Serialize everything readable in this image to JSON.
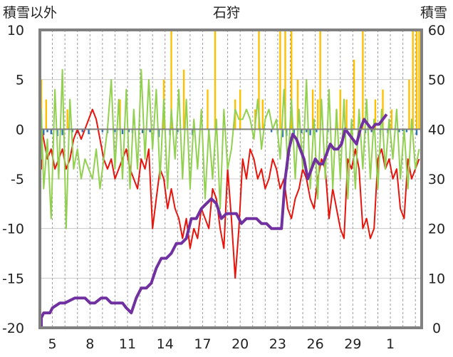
{
  "chart_data": {
    "type": "line",
    "title": "石狩",
    "y_left_label": "積雪以外",
    "y_right_label": "積雪",
    "y_left_ticks": [
      "10",
      "5",
      "0",
      "-5",
      "-10",
      "-15",
      "-20"
    ],
    "y_right_ticks": [
      "60",
      "50",
      "40",
      "30",
      "20",
      "10",
      "0"
    ],
    "x_ticks": [
      "5",
      "8",
      "11",
      "14",
      "17",
      "20",
      "23",
      "26",
      "29",
      "1"
    ],
    "ylim_left": [
      -20,
      10
    ],
    "ylim_right": [
      0,
      60
    ],
    "x_range_days": [
      0,
      30.5
    ],
    "x_tick_days": [
      1,
      4,
      7,
      10,
      13,
      16,
      19,
      22,
      25,
      28
    ],
    "grid": {
      "vertical_dashed": true,
      "horizontal_solid": true
    },
    "colors": {
      "temperature": "#e8140b",
      "wind": "#92d050",
      "precipitation": "#ffc000",
      "snowfall_negative": "#2e75b6",
      "snow_depth": "#7030a0",
      "axis_zero": "#808080",
      "frame": "#808080"
    },
    "series": [
      {
        "key": "snow_depth",
        "axis": "right",
        "x": [
          -0.6,
          -0.3,
          0.1,
          0.3,
          0.8,
          1.0,
          1.6,
          2.0,
          2.8,
          3.2,
          3.6,
          4.0,
          4.4,
          4.9,
          5.3,
          5.7,
          6.2,
          6.6,
          6.9,
          7.3,
          7.7,
          8.1,
          8.5,
          8.9,
          9.3,
          9.7,
          10.1,
          10.5,
          10.9,
          11.3,
          11.7,
          12.1,
          12.5,
          12.9,
          13.3,
          13.7,
          14.1,
          14.5,
          14.9,
          15.3,
          15.7,
          16.1,
          16.5,
          16.9,
          17.3,
          17.7,
          18.1,
          18.5,
          18.9,
          19.1,
          19.3,
          19.6,
          19.9,
          20.2,
          20.5,
          20.8,
          21.1,
          21.4,
          21.7,
          22.0,
          22.3,
          22.6,
          22.9,
          23.2,
          23.5,
          23.8,
          24.1,
          24.4,
          24.7,
          25.0,
          25.3,
          25.6,
          25.9,
          26.2,
          26.5,
          26.8,
          27.1,
          27.4,
          27.7
        ],
        "y": [
          0,
          1,
          2,
          3,
          3,
          4,
          5,
          5,
          6,
          6,
          6,
          5,
          5,
          6,
          6,
          5,
          5,
          5,
          4,
          3,
          6,
          8,
          8,
          9,
          12,
          14,
          14,
          15,
          17,
          17,
          18,
          22,
          22,
          24,
          25,
          26,
          25,
          22,
          23,
          23,
          23,
          21,
          22,
          22,
          22,
          21,
          21,
          20,
          20,
          20,
          20,
          30,
          36,
          39,
          38,
          36,
          34,
          30,
          32,
          34,
          33,
          33,
          35,
          37,
          36,
          36,
          37,
          40,
          39,
          38,
          37,
          40,
          42,
          41,
          40,
          41,
          41,
          42,
          43
        ]
      },
      {
        "key": "temperature",
        "axis": "left",
        "x": [
          -0.6,
          -0.3,
          0.0,
          0.3,
          0.6,
          0.9,
          1.2,
          1.5,
          1.8,
          2.1,
          2.4,
          2.7,
          3.0,
          3.3,
          3.6,
          3.9,
          4.2,
          4.5,
          4.8,
          5.1,
          5.4,
          5.7,
          6.0,
          6.3,
          6.6,
          6.9,
          7.2,
          7.5,
          7.8,
          8.1,
          8.4,
          8.7,
          9.0,
          9.3,
          9.6,
          9.9,
          10.2,
          10.5,
          10.8,
          11.1,
          11.4,
          11.7,
          12.0,
          12.3,
          12.6,
          12.9,
          13.2,
          13.5,
          13.8,
          14.1,
          14.4,
          14.7,
          15.0,
          15.3,
          15.6,
          15.9,
          16.2,
          16.5,
          16.8,
          17.1,
          17.4,
          17.7,
          18.0,
          18.3,
          18.6,
          18.9,
          19.2,
          19.5,
          19.8,
          20.1,
          20.4,
          20.7,
          21.0,
          21.3,
          21.6,
          21.9,
          22.2,
          22.5,
          22.8,
          23.1,
          23.4,
          23.7,
          24.0,
          24.3,
          24.6,
          24.9,
          25.2,
          25.5,
          25.8,
          26.1,
          26.4,
          26.7,
          27.0,
          27.3,
          27.6,
          27.9,
          28.2,
          28.5,
          28.8,
          29.1,
          29.4,
          29.7,
          30.0,
          30.3
        ],
        "y": [
          -3,
          -4,
          0,
          -1,
          -3,
          -2,
          -4,
          -3,
          -2,
          -4,
          -3,
          -1,
          0,
          -1,
          0,
          1,
          2,
          1,
          -1,
          -3,
          -4,
          -3,
          -5,
          -4,
          -3,
          -2,
          -4,
          -5,
          -6,
          -3,
          -4,
          -2,
          -10,
          -7,
          -4,
          -5,
          -8,
          -6,
          -8,
          -9,
          -11,
          -9,
          -12,
          -10,
          -11,
          -8,
          -9,
          -10,
          -6,
          -7,
          -10,
          -12,
          -4,
          -9,
          -15,
          -10,
          -3,
          -5,
          -2,
          -3,
          -5,
          -4,
          -6,
          -5,
          -3,
          -4,
          -6,
          -5,
          -8,
          -9,
          -7,
          -6,
          -4,
          -5,
          -7,
          -8,
          -5,
          -3,
          -4,
          -9,
          -6,
          -8,
          -10,
          -11,
          -3,
          -4,
          -2,
          -4,
          -10,
          -9,
          -11,
          -10,
          -3,
          -2,
          -4,
          -3,
          -5,
          -4,
          -8,
          -9,
          -3,
          -5,
          -4,
          -3
        ]
      },
      {
        "key": "wind",
        "axis": "left",
        "x": [
          -0.6,
          -0.3,
          0.0,
          0.3,
          0.6,
          0.9,
          1.2,
          1.5,
          1.8,
          2.1,
          2.4,
          2.7,
          3.0,
          3.3,
          3.6,
          3.9,
          4.2,
          4.5,
          4.8,
          5.1,
          5.4,
          5.7,
          6.0,
          6.3,
          6.6,
          6.9,
          7.2,
          7.5,
          7.8,
          8.1,
          8.4,
          8.7,
          9.0,
          9.3,
          9.6,
          9.9,
          10.2,
          10.5,
          10.8,
          11.1,
          11.4,
          11.7,
          12.0,
          12.3,
          12.6,
          12.9,
          13.2,
          13.5,
          13.8,
          14.1,
          14.4,
          14.7,
          15.0,
          15.3,
          15.6,
          15.9,
          16.2,
          16.5,
          16.8,
          17.1,
          17.4,
          17.7,
          18.0,
          18.3,
          18.6,
          18.9,
          19.2,
          19.5,
          19.8,
          20.1,
          20.4,
          20.7,
          21.0,
          21.3,
          21.6,
          21.9,
          22.2,
          22.5,
          22.8,
          23.1,
          23.4,
          23.7,
          24.0,
          24.3,
          24.6,
          24.9,
          25.2,
          25.5,
          25.8,
          26.1,
          26.4,
          26.7,
          27.0,
          27.3,
          27.6,
          27.9,
          28.2,
          28.5,
          28.8,
          29.1,
          29.4,
          29.7,
          30.0,
          30.3
        ],
        "y": [
          1,
          -3,
          2,
          -6,
          -1,
          -9,
          4,
          -5,
          6,
          -10,
          3,
          -4,
          -2,
          -5,
          -3,
          -4,
          -5,
          -2,
          -6,
          -3,
          0,
          5,
          -4,
          3,
          -5,
          4,
          -6,
          2,
          -4,
          6,
          -3,
          5,
          -2,
          4,
          -5,
          3,
          -6,
          2,
          -3,
          4,
          -5,
          3,
          -6,
          1,
          -4,
          2,
          -7,
          0,
          -5,
          1,
          -8,
          2,
          -4,
          -2,
          2,
          1,
          1,
          2,
          1,
          -1,
          3,
          -2,
          1,
          2,
          0,
          1,
          -3,
          4,
          -4,
          3,
          -5,
          2,
          -4,
          5,
          -6,
          1,
          -7,
          3,
          -5,
          4,
          -6,
          2,
          -5,
          3,
          -7,
          1,
          -6,
          2,
          -4,
          3,
          -5,
          1,
          -6,
          2,
          -4,
          1,
          -3,
          2,
          -5,
          0,
          -6,
          1,
          -4,
          -2
        ]
      },
      {
        "key": "precipitation",
        "axis": "left",
        "type": "bar",
        "x": [
          -0.5,
          0.5,
          2.2,
          6.4,
          9.9,
          10.5,
          11.5,
          13.4,
          14.0,
          15.6,
          16.0,
          17.2,
          17.5,
          17.8,
          19.2,
          19.6,
          20.1,
          20.6,
          21.8,
          22.2,
          22.4,
          23.7,
          24.0,
          24.5,
          25.1,
          25.8,
          26.8,
          27.4,
          28.1,
          29.5,
          29.8,
          30.1,
          30.3
        ],
        "y": [
          5,
          3,
          2,
          3,
          5,
          10,
          6,
          4,
          10,
          3,
          4,
          2,
          10,
          3,
          10,
          10,
          10,
          5,
          4,
          3,
          10,
          2,
          4,
          3,
          7,
          10,
          3,
          4,
          2,
          5,
          10,
          10,
          10
        ]
      },
      {
        "key": "snowfall_negative",
        "axis": "left",
        "type": "bar",
        "x": [
          -0.2,
          0.3,
          0.6,
          0.9,
          1.4,
          1.8,
          2.6,
          3.0,
          3.4,
          3.9,
          5.0,
          5.4,
          6.0,
          6.6,
          7.1,
          7.4,
          8.2,
          8.8,
          9.5,
          10.4,
          11.0,
          12.2,
          13.5,
          18.5,
          19.0,
          19.4,
          19.7,
          20.3,
          20.9,
          21.3,
          21.6,
          22.1,
          23.0,
          24.2,
          26.0,
          26.5,
          27.2,
          27.8,
          28.7,
          29.0,
          29.3,
          29.7,
          30.1
        ],
        "y": [
          -0.3,
          -0.6,
          -0.3,
          -0.5,
          -0.7,
          -0.6,
          -0.3,
          -0.4,
          -0.3,
          -0.5,
          -0.3,
          -0.4,
          -0.3,
          -0.5,
          -0.3,
          -0.4,
          -0.4,
          -0.3,
          -0.8,
          -0.6,
          -0.3,
          -0.6,
          -0.3,
          -0.3,
          -0.5,
          -0.8,
          -0.7,
          -0.5,
          -0.4,
          -0.3,
          -0.6,
          -0.3,
          -0.3,
          -0.4,
          -0.4,
          -0.3,
          -0.6,
          -0.4,
          -0.3,
          -0.2,
          -0.3,
          -0.2,
          -0.6
        ]
      }
    ]
  }
}
